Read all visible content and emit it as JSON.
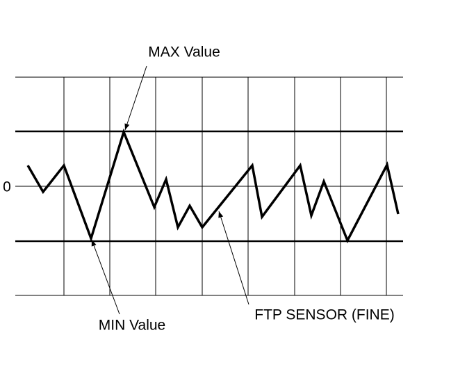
{
  "labels": {
    "zero": "0",
    "max": "MAX Value",
    "min": "MIN Value",
    "sensor": "FTP SENSOR (FINE)"
  }
}
